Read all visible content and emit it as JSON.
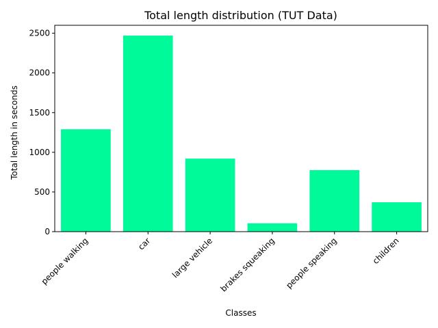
{
  "chart_data": {
    "type": "bar",
    "title": "Total length distribution (TUT Data)",
    "xlabel": "Classes",
    "ylabel": "Total length in seconds",
    "categories": [
      "people walking",
      "car",
      "large vehicle",
      "brakes squeaking",
      "people speaking",
      "children"
    ],
    "values": [
      1290,
      2470,
      920,
      105,
      775,
      370
    ],
    "ylim": [
      0,
      2600
    ],
    "yticks": [
      0,
      500,
      1000,
      1500,
      2000,
      2500
    ],
    "bar_color": "#00fa9a",
    "grid": false,
    "legend": "none"
  }
}
